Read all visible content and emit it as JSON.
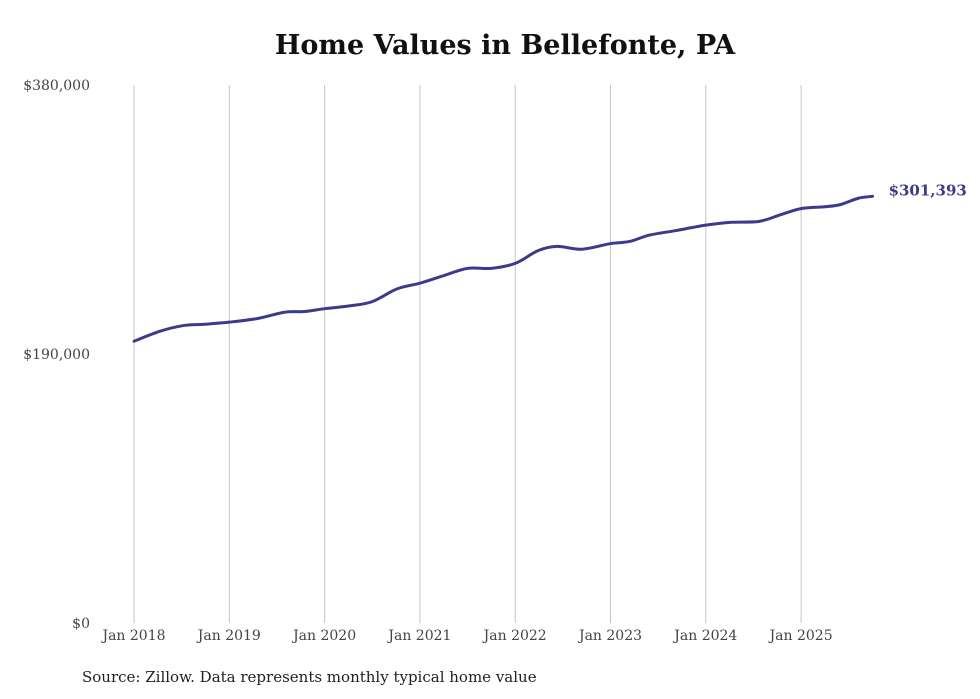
{
  "chart_data": {
    "type": "line",
    "title": "Home Values in Bellefonte, PA",
    "xlabel": "",
    "ylabel": "",
    "source": "Source: Zillow. Data represents monthly typical home value",
    "ylim": [
      0,
      380000
    ],
    "yticks": [
      0,
      190000,
      380000
    ],
    "ytick_labels": [
      "$0",
      "$190,000",
      "$380,000"
    ],
    "xticks": [
      2018,
      2019,
      2020,
      2021,
      2022,
      2023,
      2024,
      2025
    ],
    "xtick_labels": [
      "Jan 2018",
      "Jan 2019",
      "Jan 2020",
      "Jan 2021",
      "Jan 2022",
      "Jan 2023",
      "Jan 2024",
      "Jan 2025"
    ],
    "grid": "vertical",
    "line_color": "#3d3a8c",
    "end_label": "$301,393",
    "series": [
      {
        "name": "Typical home value",
        "x": [
          2018.0,
          2018.27,
          2018.51,
          2018.74,
          2019.0,
          2019.29,
          2019.58,
          2019.79,
          2020.0,
          2020.26,
          2020.5,
          2020.76,
          2021.0,
          2021.26,
          2021.5,
          2021.75,
          2022.0,
          2022.24,
          2022.44,
          2022.7,
          2023.0,
          2023.2,
          2023.41,
          2023.67,
          2024.0,
          2024.25,
          2024.56,
          2024.79,
          2025.0,
          2025.25,
          2025.41,
          2025.6,
          2025.75
        ],
        "values": [
          199000,
          206000,
          210000,
          211000,
          212500,
          215000,
          219500,
          220000,
          222000,
          224000,
          227000,
          236000,
          240000,
          245600,
          250500,
          250500,
          254000,
          263000,
          266000,
          264000,
          268000,
          269500,
          274000,
          277000,
          281000,
          283000,
          283700,
          288500,
          292700,
          294000,
          295500,
          300000,
          301393
        ]
      }
    ]
  }
}
